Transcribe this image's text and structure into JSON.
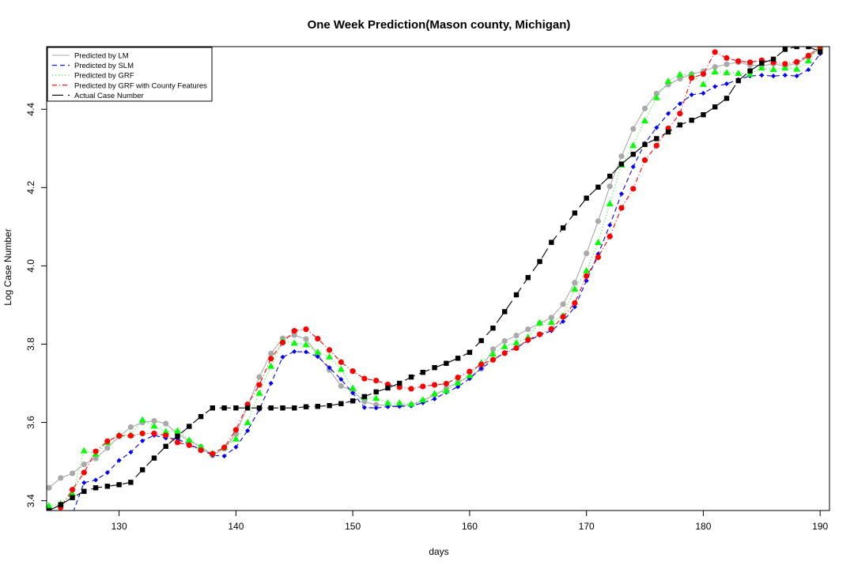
{
  "chart_data": {
    "type": "line",
    "title": "One Week Prediction(Mason county, Michigan)",
    "xlabel": "days",
    "ylabel": "Log Case Number",
    "xlim": [
      123.8,
      190.8
    ],
    "ylim": [
      3.375,
      4.56
    ],
    "x_ticks": [
      130,
      140,
      150,
      160,
      170,
      180,
      190
    ],
    "y_ticks": [
      3.4,
      3.6,
      3.8,
      4.0,
      4.2,
      4.4
    ],
    "x_tick_labels": [
      "130",
      "140",
      "150",
      "160",
      "170",
      "180",
      "190"
    ],
    "y_tick_labels": [
      "3.4",
      "3.6",
      "3.8",
      "4.0",
      "4.2",
      "4.4"
    ],
    "grid": false,
    "legend_position": "top-left",
    "x": [
      124,
      125,
      126,
      127,
      128,
      129,
      130,
      131,
      132,
      133,
      134,
      135,
      136,
      137,
      138,
      139,
      140,
      141,
      142,
      143,
      144,
      145,
      146,
      147,
      148,
      149,
      150,
      151,
      152,
      153,
      154,
      155,
      156,
      157,
      158,
      159,
      160,
      161,
      162,
      163,
      164,
      165,
      166,
      167,
      168,
      169,
      170,
      171,
      172,
      173,
      174,
      175,
      176,
      177,
      178,
      179,
      180,
      181,
      182,
      183,
      184,
      185,
      186,
      187,
      188,
      189,
      190
    ],
    "series": [
      {
        "name": "Predicted by LM",
        "color": "#a9a9a9",
        "marker": "circle",
        "line_dash": "1 0",
        "values": [
          3.433,
          3.458,
          3.47,
          3.493,
          3.508,
          3.535,
          3.564,
          3.588,
          3.6,
          3.604,
          3.597,
          3.571,
          3.553,
          3.538,
          3.516,
          3.533,
          3.571,
          3.641,
          3.716,
          3.776,
          3.815,
          3.823,
          3.813,
          3.773,
          3.734,
          3.693,
          3.68,
          3.653,
          3.645,
          3.643,
          3.643,
          3.645,
          3.655,
          3.67,
          3.687,
          3.703,
          3.717,
          3.737,
          3.787,
          3.808,
          3.822,
          3.838,
          3.853,
          3.868,
          3.902,
          3.957,
          4.032,
          4.114,
          4.203,
          4.28,
          4.35,
          4.402,
          4.44,
          4.463,
          4.478,
          4.49,
          4.497,
          4.508,
          4.515,
          4.52,
          4.513,
          4.511,
          4.516,
          4.51,
          4.518,
          4.533,
          4.556
        ]
      },
      {
        "name": "Predicted by SLM",
        "color": "#0000ff",
        "marker": "diamond",
        "line_dash": "6 4",
        "values": [
          3.32,
          3.34,
          3.366,
          3.446,
          3.453,
          3.472,
          3.503,
          3.524,
          3.553,
          3.567,
          3.56,
          3.558,
          3.543,
          3.532,
          3.516,
          3.514,
          3.537,
          3.579,
          3.633,
          3.7,
          3.767,
          3.781,
          3.78,
          3.768,
          3.74,
          3.71,
          3.675,
          3.638,
          3.637,
          3.64,
          3.641,
          3.642,
          3.65,
          3.66,
          3.677,
          3.691,
          3.712,
          3.738,
          3.759,
          3.779,
          3.791,
          3.808,
          3.823,
          3.834,
          3.858,
          3.895,
          3.962,
          4.03,
          4.104,
          4.184,
          4.253,
          4.313,
          4.353,
          4.389,
          4.414,
          4.437,
          4.441,
          4.458,
          4.465,
          4.476,
          4.485,
          4.487,
          4.485,
          4.487,
          4.485,
          4.501,
          4.542
        ]
      },
      {
        "name": "Predicted by GRF",
        "color": "#00ff00",
        "marker": "triangle",
        "line_dash": "1 3",
        "values": [
          3.387,
          3.393,
          3.418,
          3.528,
          3.519,
          3.549,
          3.568,
          3.568,
          3.607,
          3.591,
          3.577,
          3.579,
          3.555,
          3.538,
          3.521,
          3.536,
          3.558,
          3.6,
          3.675,
          3.744,
          3.808,
          3.803,
          3.799,
          3.78,
          3.768,
          3.736,
          3.688,
          3.664,
          3.662,
          3.65,
          3.65,
          3.647,
          3.658,
          3.674,
          3.681,
          3.701,
          3.72,
          3.753,
          3.775,
          3.794,
          3.804,
          3.818,
          3.855,
          3.856,
          3.873,
          3.941,
          3.988,
          4.06,
          4.159,
          4.258,
          4.308,
          4.371,
          4.43,
          4.472,
          4.489,
          4.488,
          4.464,
          4.496,
          4.494,
          4.492,
          4.49,
          4.506,
          4.502,
          4.506,
          4.503,
          4.524,
          4.56
        ]
      },
      {
        "name": "Predicted by GRF with County Features",
        "color": "#ff0000",
        "marker": "circle",
        "line_dash": "6 3 1 3",
        "values": [
          3.318,
          3.383,
          3.428,
          3.472,
          3.526,
          3.552,
          3.566,
          3.566,
          3.572,
          3.572,
          3.567,
          3.549,
          3.542,
          3.529,
          3.52,
          3.536,
          3.581,
          3.646,
          3.696,
          3.763,
          3.804,
          3.834,
          3.838,
          3.814,
          3.785,
          3.754,
          3.731,
          3.712,
          3.707,
          3.697,
          3.69,
          3.686,
          3.692,
          3.696,
          3.699,
          3.715,
          3.73,
          3.748,
          3.76,
          3.777,
          3.79,
          3.811,
          3.825,
          3.839,
          3.87,
          3.905,
          3.974,
          4.022,
          4.075,
          4.148,
          4.197,
          4.27,
          4.307,
          4.351,
          4.389,
          4.48,
          4.49,
          4.546,
          4.531,
          4.523,
          4.52,
          4.525,
          4.52,
          4.516,
          4.521,
          4.537,
          4.56
        ]
      },
      {
        "name": "Actual Case Number",
        "color": "#000000",
        "marker": "square",
        "line_dash": "14 6",
        "values": [
          3.375,
          3.39,
          3.408,
          3.424,
          3.433,
          3.437,
          3.441,
          3.447,
          3.479,
          3.509,
          3.539,
          3.565,
          3.59,
          3.615,
          3.637,
          3.637,
          3.637,
          3.637,
          3.637,
          3.637,
          3.637,
          3.637,
          3.64,
          3.641,
          3.643,
          3.648,
          3.655,
          3.666,
          3.678,
          3.688,
          3.7,
          3.716,
          3.728,
          3.74,
          3.751,
          3.764,
          3.779,
          3.809,
          3.841,
          3.883,
          3.926,
          3.97,
          4.011,
          4.06,
          4.097,
          4.135,
          4.173,
          4.201,
          4.229,
          4.26,
          4.285,
          4.31,
          4.325,
          4.342,
          4.36,
          4.372,
          4.386,
          4.406,
          4.428,
          4.473,
          4.498,
          4.518,
          4.528,
          4.553,
          4.56,
          4.56,
          4.547
        ]
      }
    ]
  }
}
